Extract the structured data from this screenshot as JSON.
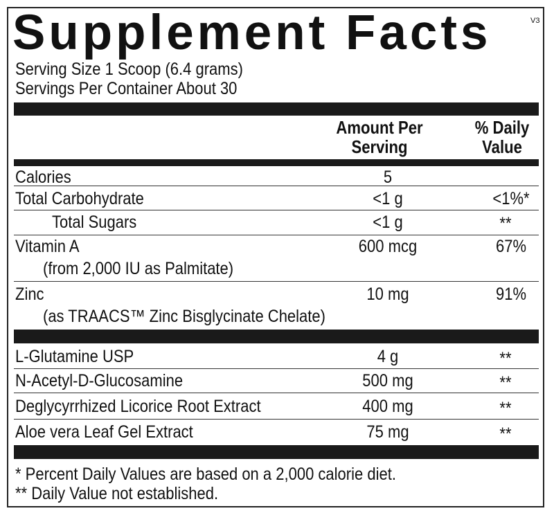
{
  "title": "Supplement Facts",
  "version": "V3",
  "serving_size": "Serving Size 1 Scoop (6.4 grams)",
  "servings_per_container": "Servings Per Container About 30",
  "headers": {
    "amount_line1": "Amount Per",
    "amount_line2": "Serving",
    "dv_line1": "% Daily",
    "dv_line2": "Value"
  },
  "rows": [
    {
      "name": "Calories",
      "amount": "5",
      "dv": ""
    },
    {
      "name": "Total Carbohydrate",
      "amount": "<1 g",
      "dv": "<1%*"
    },
    {
      "name": "Total Sugars",
      "amount": "<1 g",
      "dv": "**"
    },
    {
      "name": "Vitamin A",
      "sub": "(from 2,000 IU as Palmitate)",
      "amount": "600 mcg",
      "dv": "67%"
    },
    {
      "name": "Zinc",
      "sub": "(as TRAACS™ Zinc Bisglycinate Chelate)",
      "amount": "10 mg",
      "dv": "91%"
    },
    {
      "name": "L-Glutamine USP",
      "amount": "4 g",
      "dv": "**"
    },
    {
      "name": "N-Acetyl-D-Glucosamine",
      "amount": "500 mg",
      "dv": "**"
    },
    {
      "name": "Deglycyrrhized Licorice Root Extract",
      "amount": "400 mg",
      "dv": "**"
    },
    {
      "name": "Aloe vera Leaf Gel Extract",
      "amount": "75 mg",
      "dv": "**"
    }
  ],
  "footnotes": [
    "* Percent Daily Values are based on a 2,000 calorie diet.",
    "** Daily Value not established."
  ]
}
